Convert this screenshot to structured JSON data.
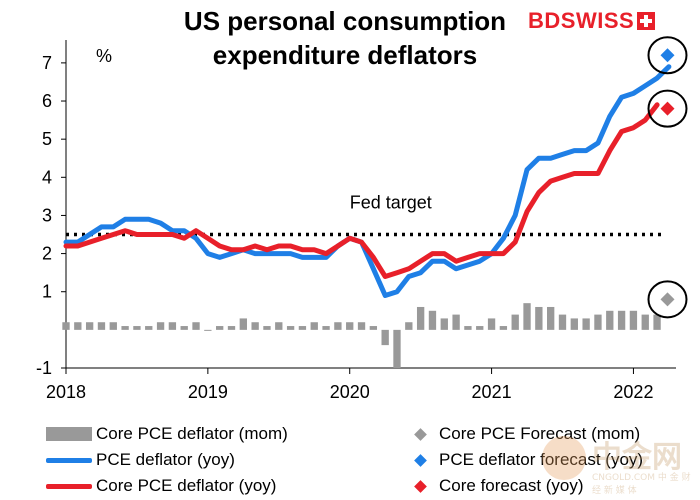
{
  "title_lines": [
    "US personal consumption",
    "expenditure deflators"
  ],
  "logo": {
    "bd": "BD",
    "swiss": "SWISS",
    "brand_color": "#e8202a"
  },
  "watermark": {
    "main": "中金网",
    "sub": "CNGOLD.COM  中 金 财 经 新 媒 体"
  },
  "chart_data": {
    "type": "line",
    "ylabel": "%",
    "ylim": [
      -1,
      7.6
    ],
    "yticks": [
      -1,
      1,
      2,
      3,
      4,
      5,
      6,
      7
    ],
    "xlim": [
      2018.0,
      2022.3
    ],
    "xticks": [
      2018,
      2019,
      2020,
      2021,
      2022
    ],
    "xtick_labels": [
      "2018",
      "2019",
      "2020",
      "2021",
      "2022"
    ],
    "reference_line": {
      "label": "Fed target",
      "value": 2.5
    },
    "series": [
      {
        "name": "Core PCE deflator (mom)",
        "kind": "bar",
        "color": "#999999",
        "start": 2018.0,
        "step": 0.08333,
        "values": [
          0.2,
          0.2,
          0.2,
          0.2,
          0.2,
          0.1,
          0.1,
          0.1,
          0.2,
          0.2,
          0.1,
          0.2,
          0.0,
          0.1,
          0.1,
          0.3,
          0.2,
          0.1,
          0.2,
          0.1,
          0.1,
          0.2,
          0.1,
          0.2,
          0.2,
          0.2,
          0.1,
          -0.4,
          -1.0,
          0.2,
          0.6,
          0.5,
          0.3,
          0.4,
          0.1,
          0.1,
          0.3,
          0.1,
          0.4,
          0.7,
          0.6,
          0.6,
          0.4,
          0.3,
          0.3,
          0.4,
          0.5,
          0.5,
          0.5,
          0.4,
          0.4
        ]
      },
      {
        "name": "PCE deflator (yoy)",
        "kind": "line",
        "color": "#1f7fe6",
        "start": 2018.0,
        "step": 0.08333,
        "values": [
          2.3,
          2.3,
          2.5,
          2.7,
          2.7,
          2.9,
          2.9,
          2.9,
          2.8,
          2.6,
          2.6,
          2.4,
          2.0,
          1.9,
          2.0,
          2.1,
          2.0,
          2.0,
          2.0,
          2.0,
          1.9,
          1.9,
          1.9,
          2.2,
          2.4,
          2.3,
          1.6,
          0.9,
          1.0,
          1.4,
          1.5,
          1.8,
          1.8,
          1.6,
          1.7,
          1.8,
          2.0,
          2.4,
          3.0,
          4.2,
          4.5,
          4.5,
          4.6,
          4.7,
          4.7,
          4.9,
          5.6,
          6.1,
          6.2,
          6.4,
          6.6,
          6.9
        ]
      },
      {
        "name": "Core PCE deflator (yoy)",
        "kind": "line",
        "color": "#e8202a",
        "start": 2018.0,
        "step": 0.08333,
        "values": [
          2.2,
          2.2,
          2.3,
          2.4,
          2.5,
          2.6,
          2.5,
          2.5,
          2.5,
          2.5,
          2.4,
          2.6,
          2.4,
          2.2,
          2.1,
          2.1,
          2.2,
          2.1,
          2.2,
          2.2,
          2.1,
          2.1,
          2.0,
          2.2,
          2.4,
          2.3,
          1.9,
          1.4,
          1.5,
          1.6,
          1.8,
          2.0,
          2.0,
          1.8,
          1.9,
          2.0,
          2.0,
          2.0,
          2.3,
          3.1,
          3.6,
          3.9,
          4.0,
          4.1,
          4.1,
          4.1,
          4.7,
          5.2,
          5.3,
          5.5,
          5.9
        ]
      },
      {
        "name": "Core PCE Forecast (mom)",
        "kind": "diamond",
        "color": "#999999",
        "points": [
          {
            "x": 2022.24,
            "y": 0.8
          }
        ]
      },
      {
        "name": "PCE deflator forecast (yoy)",
        "kind": "diamond",
        "color": "#1f7fe6",
        "points": [
          {
            "x": 2022.24,
            "y": 7.2
          }
        ]
      },
      {
        "name": "Core forecast (yoy)",
        "kind": "diamond",
        "color": "#e8202a",
        "points": [
          {
            "x": 2022.24,
            "y": 5.8
          }
        ]
      }
    ],
    "grid": false,
    "legend_position": "bottom"
  },
  "legend": {
    "items": [
      {
        "label": "Core PCE deflator (mom)",
        "symbol": "bar",
        "color": "#999999"
      },
      {
        "label": "Core PCE Forecast (mom)",
        "symbol": "diamond",
        "color": "#999999"
      },
      {
        "label": "PCE deflator (yoy)",
        "symbol": "line",
        "color": "#1f7fe6"
      },
      {
        "label": "PCE deflator forecast (yoy)",
        "symbol": "diamond",
        "color": "#1f7fe6"
      },
      {
        "label": "Core PCE deflator (yoy)",
        "symbol": "line",
        "color": "#e8202a"
      },
      {
        "label": "Core forecast (yoy)",
        "symbol": "diamond",
        "color": "#e8202a"
      }
    ]
  }
}
